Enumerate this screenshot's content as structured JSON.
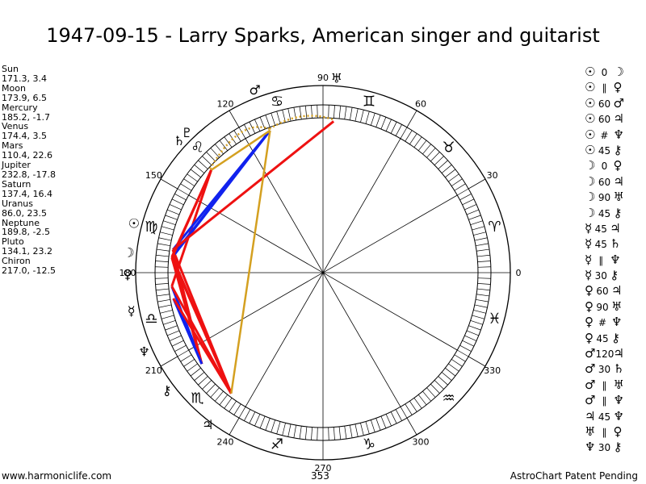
{
  "title": "1947-09-15 - Larry Sparks, American singer and guitarist",
  "planets": [
    {
      "name": "Sun",
      "values": "171.3, 3.4",
      "glyph": "☉",
      "lon": 171.3
    },
    {
      "name": "Moon",
      "values": "173.9, 6.5",
      "glyph": "☽",
      "lon": 173.9
    },
    {
      "name": "Mercury",
      "values": "185.2, -1.7",
      "glyph": "☿",
      "lon": 185.2
    },
    {
      "name": "Venus",
      "values": "174.4, 3.5",
      "glyph": "♀",
      "lon": 174.4
    },
    {
      "name": "Mars",
      "values": "110.4, 22.6",
      "glyph": "♂",
      "lon": 110.4
    },
    {
      "name": "Jupiter",
      "values": "232.8, -17.8",
      "glyph": "♃",
      "lon": 232.8
    },
    {
      "name": "Saturn",
      "values": "137.4, 16.4",
      "glyph": "♄",
      "lon": 137.4
    },
    {
      "name": "Uranus",
      "values": "86.0, 23.5",
      "glyph": "♅",
      "lon": 86.0
    },
    {
      "name": "Neptune",
      "values": "189.8, -2.5",
      "glyph": "♆",
      "lon": 189.8
    },
    {
      "name": "Pluto",
      "values": "134.1, 23.2",
      "glyph": "♇",
      "lon": 134.1
    },
    {
      "name": "Chiron",
      "values": "217.0, -12.5",
      "glyph": "⚷",
      "lon": 217.0
    }
  ],
  "aspects": [
    {
      "p1": "☉",
      "sym": "0",
      "p2": "☽"
    },
    {
      "p1": "☉",
      "sym": "∥",
      "p2": "♀"
    },
    {
      "p1": "☉",
      "sym": "60",
      "p2": "♂"
    },
    {
      "p1": "☉",
      "sym": "60",
      "p2": "♃"
    },
    {
      "p1": "☉",
      "sym": "#",
      "p2": "♆"
    },
    {
      "p1": "☉",
      "sym": "45",
      "p2": "⚷"
    },
    {
      "p1": "☽",
      "sym": "0",
      "p2": "♀"
    },
    {
      "p1": "☽",
      "sym": "60",
      "p2": "♃"
    },
    {
      "p1": "☽",
      "sym": "90",
      "p2": "♅"
    },
    {
      "p1": "☽",
      "sym": "45",
      "p2": "⚷"
    },
    {
      "p1": "☿",
      "sym": "45",
      "p2": "♃"
    },
    {
      "p1": "☿",
      "sym": "45",
      "p2": "♄"
    },
    {
      "p1": "☿",
      "sym": "∥",
      "p2": "♆"
    },
    {
      "p1": "☿",
      "sym": "30",
      "p2": "⚷"
    },
    {
      "p1": "♀",
      "sym": "60",
      "p2": "♃"
    },
    {
      "p1": "♀",
      "sym": "90",
      "p2": "♅"
    },
    {
      "p1": "♀",
      "sym": "#",
      "p2": "♆"
    },
    {
      "p1": "♀",
      "sym": "45",
      "p2": "⚷"
    },
    {
      "p1": "♂",
      "sym": "120",
      "p2": "♃"
    },
    {
      "p1": "♂",
      "sym": "30",
      "p2": "♄"
    },
    {
      "p1": "♂",
      "sym": "∥",
      "p2": "♅"
    },
    {
      "p1": "♂",
      "sym": "∥",
      "p2": "♆"
    },
    {
      "p1": "♃",
      "sym": "45",
      "p2": "♆"
    },
    {
      "p1": "♅",
      "sym": "∥",
      "p2": "♀"
    },
    {
      "p1": "♆",
      "sym": "30",
      "p2": "⚷"
    }
  ],
  "wheel": {
    "degree_labels": [
      "0",
      "30",
      "60",
      "90",
      "120",
      "150",
      "180",
      "210",
      "240",
      "270",
      "300",
      "330"
    ],
    "zodiac_glyphs": [
      "♈",
      "♉",
      "♊",
      "♋",
      "♌",
      "♍",
      "♎",
      "♏",
      "♐",
      "♑",
      "♒",
      "♓"
    ],
    "aspect_colors": {
      "red": "#ee1111",
      "blue": "#1122ee",
      "gold": "#d4a020"
    }
  },
  "footer": {
    "left": "www.harmoniclife.com",
    "middle": "353",
    "right": "AstroChart Patent Pending"
  }
}
